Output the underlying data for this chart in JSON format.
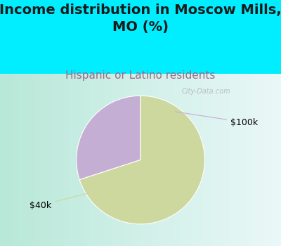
{
  "title": "Income distribution in Moscow Mills,\nMO (%)",
  "subtitle": "Hispanic or Latino residents",
  "slices": [
    {
      "label": "$100k",
      "value": 30,
      "color": "#c4aed4"
    },
    {
      "label": "$40k",
      "value": 70,
      "color": "#ccd89e"
    }
  ],
  "background_color": "#00eeff",
  "chart_bg_left": "#b8e8d8",
  "chart_bg_right": "#eaf8f8",
  "title_fontsize": 14,
  "subtitle_fontsize": 11,
  "subtitle_color": "#9b6b8a",
  "startangle": 90,
  "watermark": "City-Data.com",
  "watermark_color": "#aaaaaa"
}
